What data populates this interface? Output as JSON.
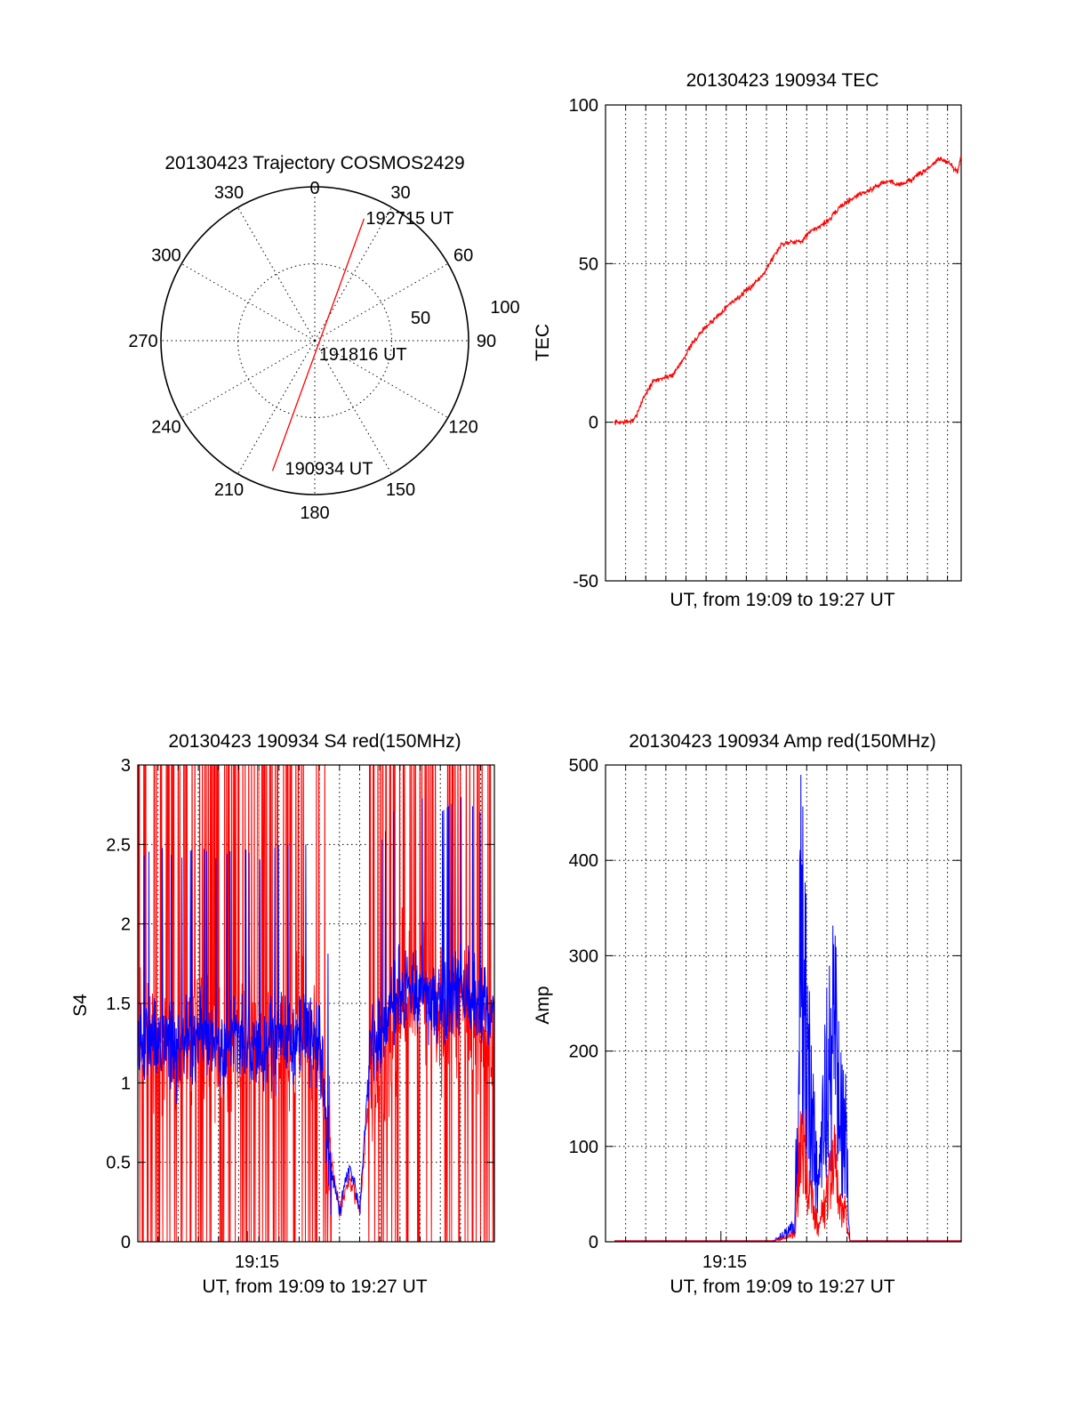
{
  "figure": {
    "panels": [
      {
        "id": "trajectory",
        "title": "20130423 Trajectory COSMOS2429",
        "type": "polar",
        "azimuth_labels": [
          "0",
          "30",
          "60",
          "90",
          "120",
          "150",
          "180",
          "210",
          "240",
          "270",
          "300",
          "330"
        ],
        "radial_labels": [
          "50",
          "100"
        ],
        "trajectory_color": "#ff0000",
        "points": [
          {
            "label": "190934 UT",
            "az": 198,
            "el": 10
          },
          {
            "label": "191816 UT",
            "az": 200,
            "el": 85
          },
          {
            "label": "192715 UT",
            "az": 22,
            "el": 13
          }
        ]
      },
      {
        "id": "tec",
        "title": "20130423 190934 TEC",
        "xlabel": "UT, from 19:09 to 19:27 UT",
        "ylabel": "TEC"
      },
      {
        "id": "s4",
        "title": "20130423 190934 S4 red(150MHz)",
        "xlabel": "UT, from 19:09 to 19:27 UT",
        "ylabel": "S4",
        "xtick_label": "19:15"
      },
      {
        "id": "amp",
        "title": "20130423 190934 Amp red(150MHz)",
        "xlabel": "UT, from 19:09 to 19:27 UT",
        "ylabel": "Amp",
        "xtick_label": "19:15"
      }
    ]
  },
  "chart_data": [
    {
      "type": "line",
      "title": "20130423 190934 TEC",
      "xlabel": "UT, from 19:09 to 19:27 UT",
      "ylabel": "TEC",
      "xlim": [
        "19:09:34",
        "19:27:15"
      ],
      "ylim": [
        -50,
        100
      ],
      "yticks": [
        -50,
        0,
        50,
        100
      ],
      "grid": true,
      "series": [
        {
          "color": "#ff0000",
          "x": [
            0,
            0.5,
            1,
            1.5,
            2,
            2.5,
            3,
            3.5,
            4,
            4.5,
            5,
            5.5,
            6,
            6.5,
            7,
            7.5,
            8,
            8.5,
            9,
            9.5,
            10,
            10.5,
            11,
            11.5,
            12,
            12.5,
            13,
            13.5,
            14,
            14.5,
            15,
            15.5,
            16,
            16.5,
            17,
            17.5,
            17.68
          ],
          "y": [
            0,
            0,
            0.5,
            8,
            13,
            14,
            15,
            20,
            25,
            29,
            32,
            35,
            38,
            40,
            43,
            46,
            51,
            56,
            57,
            57,
            60,
            62,
            64,
            68,
            70,
            72,
            73,
            75,
            76,
            75,
            76,
            78,
            80,
            83,
            82,
            79,
            84
          ]
        }
      ]
    },
    {
      "type": "line",
      "title": "20130423 190934 S4 red(150MHz)",
      "xlabel": "UT, from 19:09 to 19:27 UT",
      "ylabel": "S4",
      "xlim": [
        "19:09:34",
        "19:27:15"
      ],
      "ylim": [
        0,
        3
      ],
      "yticks": [
        0,
        0.5,
        1,
        1.5,
        2,
        2.5,
        3
      ],
      "xticks": [
        "19:15"
      ],
      "grid": true,
      "series": [
        {
          "color": "#ff0000",
          "x": [
            0,
            1,
            2,
            3,
            4,
            5,
            6,
            7,
            8,
            9,
            9.5,
            10,
            10.5,
            11,
            11.5,
            12,
            13,
            14,
            15,
            16,
            17,
            17.68
          ],
          "y": [
            1.2,
            1.3,
            1.1,
            1.4,
            1.2,
            1.3,
            1.2,
            1.3,
            1.3,
            1.2,
            0.6,
            0.2,
            0.4,
            0.2,
            1.0,
            0.9,
            1.5,
            1.6,
            1.4,
            1.5,
            1.3,
            1.3
          ]
        },
        {
          "color": "#0000ff",
          "x": [
            0,
            1,
            2,
            3,
            4,
            5,
            6,
            7,
            8,
            9,
            9.5,
            10,
            10.5,
            11,
            11.5,
            12,
            13,
            14,
            15,
            16,
            17,
            17.68
          ],
          "y": [
            1.2,
            1.3,
            1.2,
            1.3,
            1.2,
            1.3,
            1.2,
            1.3,
            1.3,
            1.3,
            0.5,
            0.2,
            0.5,
            0.2,
            1.2,
            1.3,
            1.6,
            1.6,
            1.5,
            1.6,
            1.5,
            1.4
          ]
        }
      ]
    },
    {
      "type": "line",
      "title": "20130423 190934 Amp red(150MHz)",
      "xlabel": "UT, from 19:09 to 19:27 UT",
      "ylabel": "Amp",
      "xlim": [
        "19:09:34",
        "19:27:15"
      ],
      "ylim": [
        0,
        500
      ],
      "yticks": [
        0,
        100,
        200,
        300,
        400,
        500
      ],
      "xticks": [
        "19:15"
      ],
      "grid": true,
      "series": [
        {
          "color": "#ff0000",
          "x": [
            0,
            8,
            9.2,
            9.5,
            9.8,
            10.0,
            10.4,
            10.8,
            11.2,
            11.5,
            11.8,
            12.0,
            13,
            17.68
          ],
          "y": [
            0,
            0,
            10,
            160,
            110,
            60,
            20,
            60,
            120,
            50,
            40,
            0,
            0,
            0
          ]
        },
        {
          "color": "#0000ff",
          "x": [
            0,
            8,
            9.2,
            9.5,
            9.8,
            10.0,
            10.4,
            10.8,
            11.2,
            11.5,
            11.8,
            12.0,
            13,
            17.68
          ],
          "y": [
            0,
            0,
            20,
            430,
            300,
            200,
            60,
            230,
            300,
            180,
            150,
            0,
            0,
            0
          ]
        }
      ]
    }
  ]
}
